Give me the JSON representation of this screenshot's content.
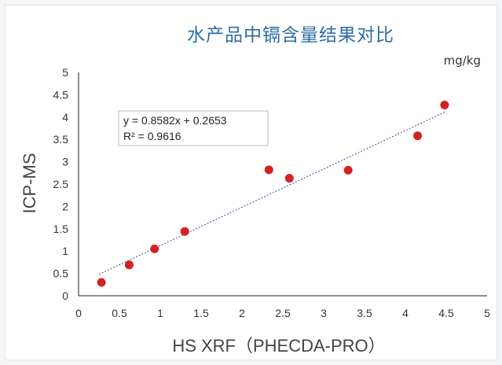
{
  "chart_data": {
    "type": "scatter",
    "title": "水产品中镉含量结果对比",
    "unit_label": "mg/kg",
    "xlabel": "HS  XRF（PHECDA-PRO）",
    "ylabel": "ICP-MS",
    "xlim": [
      0,
      5
    ],
    "ylim": [
      0,
      5
    ],
    "x_ticks": [
      "0",
      "0.5",
      "1",
      "1.5",
      "2",
      "2.5",
      "3",
      "3.5",
      "4",
      "4.5",
      "5"
    ],
    "y_ticks": [
      "0",
      "0.5",
      "1",
      "1.5",
      "2",
      "2.5",
      "3",
      "3.5",
      "4",
      "4.5",
      "5"
    ],
    "grid": false,
    "points": [
      {
        "x": 0.28,
        "y": 0.3
      },
      {
        "x": 0.62,
        "y": 0.69
      },
      {
        "x": 0.93,
        "y": 1.05
      },
      {
        "x": 1.3,
        "y": 1.44
      },
      {
        "x": 2.33,
        "y": 2.82
      },
      {
        "x": 2.58,
        "y": 2.63
      },
      {
        "x": 3.3,
        "y": 2.81
      },
      {
        "x": 4.15,
        "y": 3.58
      },
      {
        "x": 4.48,
        "y": 4.27
      }
    ],
    "trendline": {
      "slope": 0.8582,
      "intercept": 0.2653,
      "x_from": 0.25,
      "x_to": 4.5
    },
    "equation_line1": "y = 0.8582x + 0.2653",
    "equation_line2": "R² = 0.9616",
    "colors": {
      "point": "#d42121",
      "trend": "#2f55a4",
      "title": "#2e6da4"
    }
  }
}
